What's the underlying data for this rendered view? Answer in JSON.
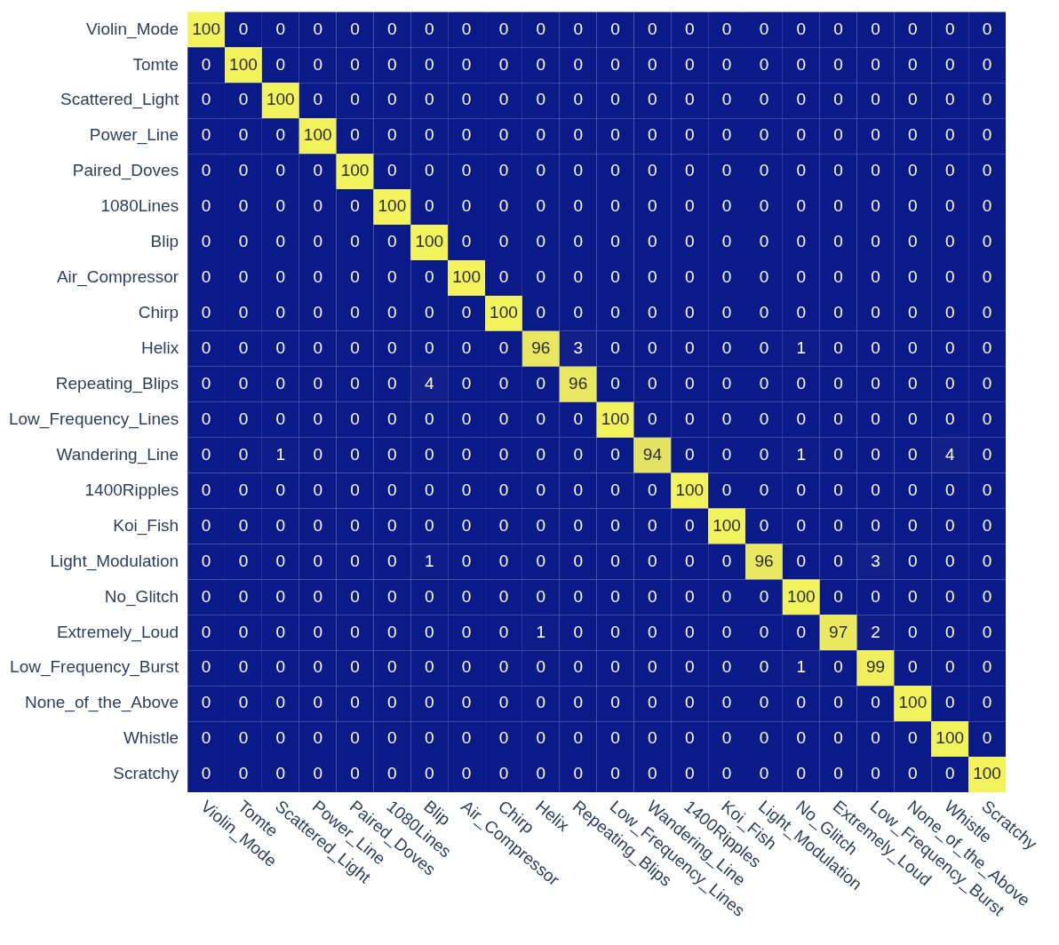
{
  "chart_data": {
    "type": "heatmap",
    "data_labels": true,
    "categories": [
      "Violin_Mode",
      "Tomte",
      "Scattered_Light",
      "Power_Line",
      "Paired_Doves",
      "1080Lines",
      "Blip",
      "Air_Compressor",
      "Chirp",
      "Helix",
      "Repeating_Blips",
      "Low_Frequency_Lines",
      "Wandering_Line",
      "1400Ripples",
      "Koi_Fish",
      "Light_Modulation",
      "No_Glitch",
      "Extremely_Loud",
      "Low_Frequency_Burst",
      "None_of_the_Above",
      "Whistle",
      "Scratchy"
    ],
    "y_categories": [
      "Violin_Mode",
      "Tomte",
      "Scattered_Light",
      "Power_Line",
      "Paired_Doves",
      "1080Lines",
      "Blip",
      "Air_Compressor",
      "Chirp",
      "Helix",
      "Repeating_Blips",
      "Low_Frequency_Lines",
      "Wandering_Line",
      "1400Ripples",
      "Koi_Fish",
      "Light_Modulation",
      "No_Glitch",
      "Extremely_Loud",
      "Low_Frequency_Burst",
      "None_of_the_Above",
      "Whistle",
      "Scratchy"
    ],
    "cells": [
      [
        100,
        0,
        0,
        0,
        0,
        0,
        0,
        0,
        0,
        0,
        0,
        0,
        0,
        0,
        0,
        0,
        0,
        0,
        0,
        0,
        0,
        0
      ],
      [
        0,
        100,
        0,
        0,
        0,
        0,
        0,
        0,
        0,
        0,
        0,
        0,
        0,
        0,
        0,
        0,
        0,
        0,
        0,
        0,
        0,
        0
      ],
      [
        0,
        0,
        100,
        0,
        0,
        0,
        0,
        0,
        0,
        0,
        0,
        0,
        0,
        0,
        0,
        0,
        0,
        0,
        0,
        0,
        0,
        0
      ],
      [
        0,
        0,
        0,
        100,
        0,
        0,
        0,
        0,
        0,
        0,
        0,
        0,
        0,
        0,
        0,
        0,
        0,
        0,
        0,
        0,
        0,
        0
      ],
      [
        0,
        0,
        0,
        0,
        100,
        0,
        0,
        0,
        0,
        0,
        0,
        0,
        0,
        0,
        0,
        0,
        0,
        0,
        0,
        0,
        0,
        0
      ],
      [
        0,
        0,
        0,
        0,
        0,
        100,
        0,
        0,
        0,
        0,
        0,
        0,
        0,
        0,
        0,
        0,
        0,
        0,
        0,
        0,
        0,
        0
      ],
      [
        0,
        0,
        0,
        0,
        0,
        0,
        100,
        0,
        0,
        0,
        0,
        0,
        0,
        0,
        0,
        0,
        0,
        0,
        0,
        0,
        0,
        0
      ],
      [
        0,
        0,
        0,
        0,
        0,
        0,
        0,
        100,
        0,
        0,
        0,
        0,
        0,
        0,
        0,
        0,
        0,
        0,
        0,
        0,
        0,
        0
      ],
      [
        0,
        0,
        0,
        0,
        0,
        0,
        0,
        0,
        100,
        0,
        0,
        0,
        0,
        0,
        0,
        0,
        0,
        0,
        0,
        0,
        0,
        0
      ],
      [
        0,
        0,
        0,
        0,
        0,
        0,
        0,
        0,
        0,
        96,
        3,
        0,
        0,
        0,
        0,
        0,
        1,
        0,
        0,
        0,
        0,
        0
      ],
      [
        0,
        0,
        0,
        0,
        0,
        0,
        4,
        0,
        0,
        0,
        96,
        0,
        0,
        0,
        0,
        0,
        0,
        0,
        0,
        0,
        0,
        0
      ],
      [
        0,
        0,
        0,
        0,
        0,
        0,
        0,
        0,
        0,
        0,
        0,
        100,
        0,
        0,
        0,
        0,
        0,
        0,
        0,
        0,
        0,
        0
      ],
      [
        0,
        0,
        1,
        0,
        0,
        0,
        0,
        0,
        0,
        0,
        0,
        0,
        94,
        0,
        0,
        0,
        1,
        0,
        0,
        0,
        4,
        0
      ],
      [
        0,
        0,
        0,
        0,
        0,
        0,
        0,
        0,
        0,
        0,
        0,
        0,
        0,
        100,
        0,
        0,
        0,
        0,
        0,
        0,
        0,
        0
      ],
      [
        0,
        0,
        0,
        0,
        0,
        0,
        0,
        0,
        0,
        0,
        0,
        0,
        0,
        0,
        100,
        0,
        0,
        0,
        0,
        0,
        0,
        0
      ],
      [
        0,
        0,
        0,
        0,
        0,
        0,
        1,
        0,
        0,
        0,
        0,
        0,
        0,
        0,
        0,
        96,
        0,
        0,
        3,
        0,
        0,
        0
      ],
      [
        0,
        0,
        0,
        0,
        0,
        0,
        0,
        0,
        0,
        0,
        0,
        0,
        0,
        0,
        0,
        0,
        100,
        0,
        0,
        0,
        0,
        0
      ],
      [
        0,
        0,
        0,
        0,
        0,
        0,
        0,
        0,
        0,
        1,
        0,
        0,
        0,
        0,
        0,
        0,
        0,
        97,
        2,
        0,
        0,
        0
      ],
      [
        0,
        0,
        0,
        0,
        0,
        0,
        0,
        0,
        0,
        0,
        0,
        0,
        0,
        0,
        0,
        0,
        1,
        0,
        99,
        0,
        0,
        0
      ],
      [
        0,
        0,
        0,
        0,
        0,
        0,
        0,
        0,
        0,
        0,
        0,
        0,
        0,
        0,
        0,
        0,
        0,
        0,
        0,
        100,
        0,
        0
      ],
      [
        0,
        0,
        0,
        0,
        0,
        0,
        0,
        0,
        0,
        0,
        0,
        0,
        0,
        0,
        0,
        0,
        0,
        0,
        0,
        0,
        100,
        0
      ],
      [
        0,
        0,
        0,
        0,
        0,
        0,
        0,
        0,
        0,
        0,
        0,
        0,
        0,
        0,
        0,
        0,
        0,
        0,
        0,
        0,
        0,
        100
      ]
    ]
  }
}
